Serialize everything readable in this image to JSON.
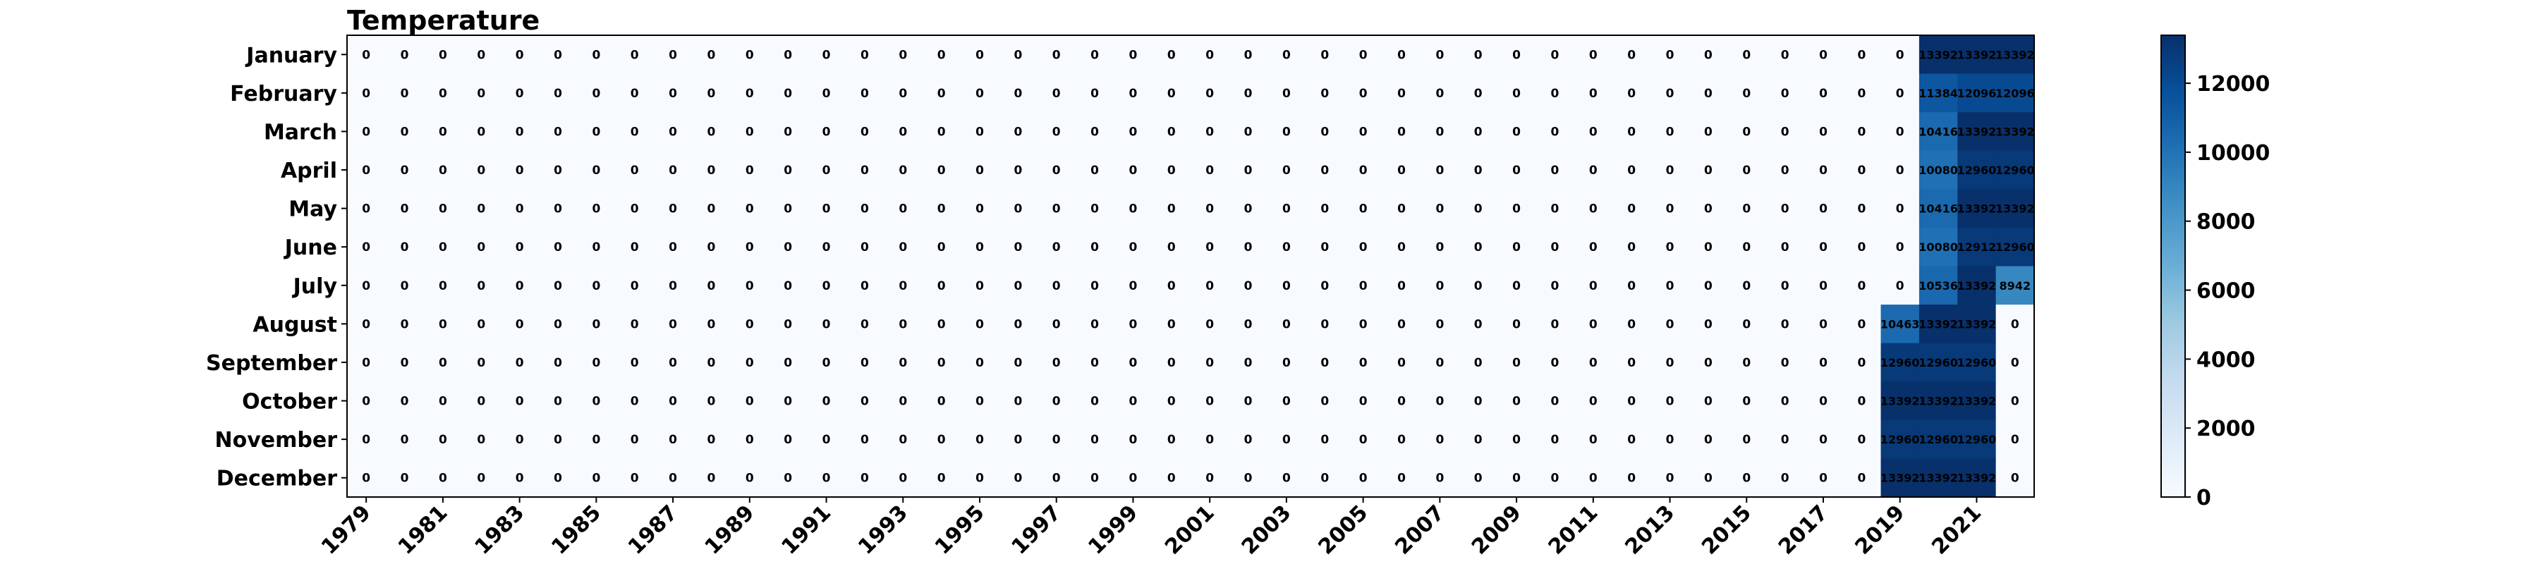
{
  "chart_data": {
    "type": "heatmap",
    "title": "Temperature",
    "rows": [
      "January",
      "February",
      "March",
      "April",
      "May",
      "June",
      "July",
      "August",
      "September",
      "October",
      "November",
      "December"
    ],
    "columns": [
      "1979",
      "1980",
      "1981",
      "1982",
      "1983",
      "1984",
      "1985",
      "1986",
      "1987",
      "1988",
      "1989",
      "1990",
      "1991",
      "1992",
      "1993",
      "1994",
      "1995",
      "1996",
      "1997",
      "1998",
      "1999",
      "2000",
      "2001",
      "2002",
      "2003",
      "2004",
      "2005",
      "2006",
      "2007",
      "2008",
      "2009",
      "2010",
      "2011",
      "2012",
      "2013",
      "2014",
      "2015",
      "2016",
      "2017",
      "2018",
      "2019",
      "2020",
      "2021",
      "2022"
    ],
    "x_tick_labels": [
      "1979",
      "1981",
      "1983",
      "1985",
      "1987",
      "1989",
      "1991",
      "1993",
      "1995",
      "1997",
      "1999",
      "2001",
      "2003",
      "2005",
      "2007",
      "2009",
      "2011",
      "2013",
      "2015",
      "2017",
      "2019",
      "2021"
    ],
    "nonzero_values": {
      "January": {
        "2020": 13392,
        "2021": 13392,
        "2022": 13392
      },
      "February": {
        "2020": 11384,
        "2021": 12096,
        "2022": 12096
      },
      "March": {
        "2020": 10416,
        "2021": 13392,
        "2022": 13392
      },
      "April": {
        "2020": 10080,
        "2021": 12960,
        "2022": 12960
      },
      "May": {
        "2020": 10416,
        "2021": 13392,
        "2022": 13392
      },
      "June": {
        "2020": 10080,
        "2021": 12912,
        "2022": 12960
      },
      "July": {
        "2020": 10536,
        "2021": 13392,
        "2022": 8942
      },
      "August": {
        "2019": 10463,
        "2020": 13392,
        "2021": 13392
      },
      "September": {
        "2019": 12960,
        "2020": 12960,
        "2021": 12960
      },
      "October": {
        "2019": 13392,
        "2020": 13392,
        "2021": 13392
      },
      "November": {
        "2019": 12960,
        "2020": 12960,
        "2021": 12960
      },
      "December": {
        "2019": 13392,
        "2020": 13392,
        "2021": 13392
      }
    },
    "default_value": 0,
    "colorbar": {
      "range": [
        0,
        13392
      ],
      "ticks": [
        0,
        2000,
        4000,
        6000,
        8000,
        10000,
        12000
      ],
      "colormap": "Blues",
      "low_color": "#f7fbff",
      "high_color": "#08306b"
    },
    "xlabel": "",
    "ylabel": ""
  }
}
